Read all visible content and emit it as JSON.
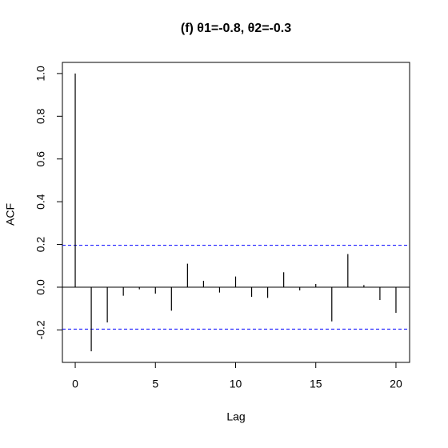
{
  "chart_data": {
    "type": "acf",
    "title": "(f)  θ1=-0.8, θ2=-0.3",
    "x_label": "Lag",
    "y_label": "ACF",
    "x": [
      0,
      1,
      2,
      3,
      4,
      5,
      6,
      7,
      8,
      9,
      10,
      11,
      12,
      13,
      14,
      15,
      16,
      17,
      18,
      19,
      20
    ],
    "values": [
      1.0,
      -0.3,
      -0.165,
      -0.04,
      -0.01,
      -0.03,
      -0.11,
      0.11,
      0.03,
      -0.025,
      0.05,
      -0.045,
      -0.05,
      0.07,
      -0.015,
      0.015,
      -0.16,
      0.155,
      0.01,
      -0.06,
      -0.12
    ],
    "color": "#000000",
    "confidence_bounds": [
      -0.196,
      0.196
    ],
    "bound_color": "#0000ff",
    "xlim": [
      -0.8,
      20.85
    ],
    "ylim": [
      -0.352,
      1.052
    ],
    "xticks": [
      0,
      5,
      10,
      15,
      20
    ],
    "yticks": [
      -0.2,
      {
        "value": 0,
        "label": "0.0"
      },
      0.2,
      0.4,
      0.6,
      0.8,
      {
        "value": 1,
        "label": "1.0"
      }
    ]
  }
}
